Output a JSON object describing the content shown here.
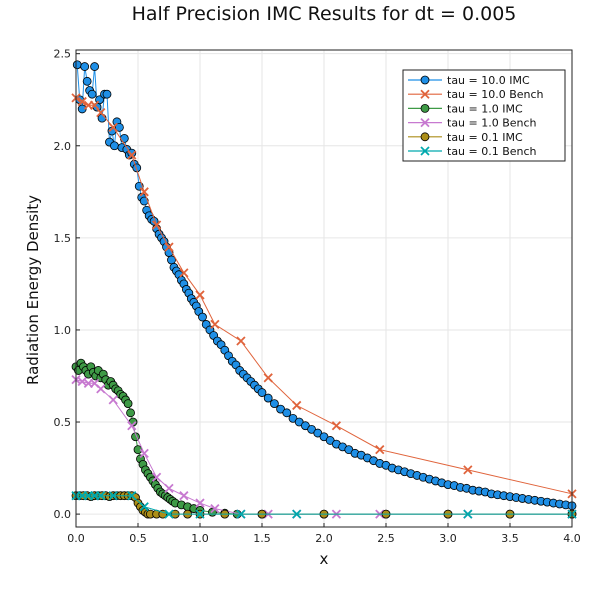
{
  "chart_data": {
    "type": "line",
    "title": "Half Precision IMC Results for dt = 0.005",
    "xlabel": "x",
    "ylabel": "Radiation Energy Density",
    "xlim": [
      0,
      4
    ],
    "ylim": [
      -0.07,
      2.52
    ],
    "xticks": [
      "0.0",
      "0.5",
      "1.0",
      "1.5",
      "2.0",
      "2.5",
      "3.0",
      "3.5",
      "4.0"
    ],
    "yticks": [
      "0.0",
      "0.5",
      "1.0",
      "1.5",
      "2.0",
      "2.5"
    ],
    "grid": true,
    "legend_position": "top-right",
    "colors": {
      "tau10_imc": "#1f8fe6",
      "tau10_bench": "#e0643c",
      "tau1_imc": "#3e9a46",
      "tau1_bench": "#c779d0",
      "tau01_imc": "#ac8e18",
      "tau01_bench": "#00a9ad"
    },
    "series": [
      {
        "name": "tau = 10.0 IMC",
        "marker": "circle",
        "x": [
          0.01,
          0.03,
          0.05,
          0.07,
          0.09,
          0.11,
          0.13,
          0.15,
          0.17,
          0.19,
          0.21,
          0.23,
          0.25,
          0.27,
          0.29,
          0.31,
          0.33,
          0.35,
          0.37,
          0.39,
          0.41,
          0.43,
          0.45,
          0.47,
          0.49,
          0.51,
          0.53,
          0.55,
          0.57,
          0.59,
          0.61,
          0.63,
          0.65,
          0.67,
          0.69,
          0.71,
          0.73,
          0.75,
          0.77,
          0.79,
          0.81,
          0.83,
          0.85,
          0.87,
          0.89,
          0.91,
          0.93,
          0.95,
          0.97,
          0.99,
          1.02,
          1.05,
          1.08,
          1.11,
          1.14,
          1.17,
          1.2,
          1.23,
          1.26,
          1.29,
          1.32,
          1.35,
          1.38,
          1.41,
          1.44,
          1.47,
          1.5,
          1.55,
          1.6,
          1.65,
          1.7,
          1.75,
          1.8,
          1.85,
          1.9,
          1.95,
          2.0,
          2.05,
          2.1,
          2.15,
          2.2,
          2.25,
          2.3,
          2.35,
          2.4,
          2.45,
          2.5,
          2.55,
          2.6,
          2.65,
          2.7,
          2.75,
          2.8,
          2.85,
          2.9,
          2.95,
          3.0,
          3.05,
          3.1,
          3.15,
          3.2,
          3.25,
          3.3,
          3.35,
          3.4,
          3.45,
          3.5,
          3.55,
          3.6,
          3.65,
          3.7,
          3.75,
          3.8,
          3.85,
          3.9,
          3.95,
          4.0
        ],
        "y": [
          2.44,
          2.25,
          2.2,
          2.43,
          2.35,
          2.3,
          2.28,
          2.43,
          2.21,
          2.25,
          2.15,
          2.28,
          2.28,
          2.02,
          2.08,
          2.0,
          2.13,
          2.1,
          1.99,
          2.04,
          1.98,
          1.95,
          1.96,
          1.9,
          1.88,
          1.78,
          1.72,
          1.7,
          1.65,
          1.62,
          1.6,
          1.59,
          1.55,
          1.52,
          1.5,
          1.48,
          1.45,
          1.42,
          1.38,
          1.34,
          1.32,
          1.3,
          1.27,
          1.25,
          1.22,
          1.2,
          1.17,
          1.15,
          1.13,
          1.1,
          1.07,
          1.03,
          1.0,
          0.97,
          0.94,
          0.92,
          0.89,
          0.86,
          0.83,
          0.81,
          0.78,
          0.76,
          0.74,
          0.72,
          0.7,
          0.68,
          0.66,
          0.63,
          0.6,
          0.57,
          0.55,
          0.52,
          0.5,
          0.48,
          0.46,
          0.44,
          0.42,
          0.4,
          0.38,
          0.365,
          0.35,
          0.33,
          0.32,
          0.305,
          0.29,
          0.275,
          0.265,
          0.25,
          0.24,
          0.23,
          0.22,
          0.21,
          0.2,
          0.19,
          0.18,
          0.17,
          0.16,
          0.155,
          0.145,
          0.14,
          0.13,
          0.125,
          0.12,
          0.11,
          0.105,
          0.1,
          0.095,
          0.09,
          0.085,
          0.08,
          0.075,
          0.07,
          0.065,
          0.06,
          0.055,
          0.05,
          0.045
        ]
      },
      {
        "name": "tau = 10.0 Bench",
        "marker": "x",
        "x": [
          0.0,
          0.05,
          0.1,
          0.15,
          0.2,
          0.3,
          0.45,
          0.55,
          0.65,
          0.75,
          0.87,
          1.0,
          1.12,
          1.33,
          1.55,
          1.78,
          2.1,
          2.45,
          3.16,
          4.0
        ],
        "y": [
          2.26,
          2.24,
          2.22,
          2.22,
          2.18,
          2.1,
          1.95,
          1.75,
          1.57,
          1.45,
          1.31,
          1.19,
          1.03,
          0.94,
          0.74,
          0.59,
          0.48,
          0.35,
          0.24,
          0.11
        ]
      },
      {
        "name": "tau = 1.0 IMC",
        "marker": "circle",
        "x": [
          0.0,
          0.02,
          0.04,
          0.06,
          0.08,
          0.1,
          0.12,
          0.14,
          0.16,
          0.18,
          0.2,
          0.22,
          0.24,
          0.26,
          0.28,
          0.3,
          0.32,
          0.34,
          0.36,
          0.38,
          0.4,
          0.42,
          0.44,
          0.46,
          0.48,
          0.5,
          0.52,
          0.54,
          0.56,
          0.58,
          0.6,
          0.62,
          0.64,
          0.66,
          0.68,
          0.7,
          0.72,
          0.74,
          0.76,
          0.78,
          0.8,
          0.85,
          0.9,
          0.95,
          1.0,
          1.1,
          1.2,
          1.3,
          1.5,
          2.0,
          2.5,
          3.0,
          3.5,
          4.0
        ],
        "y": [
          0.8,
          0.78,
          0.82,
          0.8,
          0.78,
          0.76,
          0.8,
          0.77,
          0.75,
          0.78,
          0.74,
          0.76,
          0.73,
          0.7,
          0.72,
          0.7,
          0.68,
          0.67,
          0.65,
          0.64,
          0.62,
          0.6,
          0.55,
          0.5,
          0.42,
          0.35,
          0.3,
          0.27,
          0.24,
          0.22,
          0.2,
          0.18,
          0.16,
          0.14,
          0.12,
          0.11,
          0.1,
          0.09,
          0.08,
          0.07,
          0.06,
          0.05,
          0.04,
          0.03,
          0.02,
          0.01,
          0.005,
          0.0,
          0.0,
          0.0,
          0.0,
          0.0,
          0.0,
          0.0
        ]
      },
      {
        "name": "tau = 1.0 Bench",
        "marker": "x",
        "x": [
          0.0,
          0.05,
          0.1,
          0.15,
          0.2,
          0.3,
          0.45,
          0.55,
          0.65,
          0.75,
          0.87,
          1.0,
          1.12,
          1.33,
          1.55,
          1.78,
          2.1,
          2.45,
          3.16,
          4.0
        ],
        "y": [
          0.73,
          0.72,
          0.71,
          0.71,
          0.68,
          0.62,
          0.48,
          0.33,
          0.2,
          0.14,
          0.1,
          0.06,
          0.03,
          0.0,
          0.0,
          0.0,
          0.0,
          0.0,
          0.0,
          0.0
        ]
      },
      {
        "name": "tau = 0.1 IMC",
        "marker": "circle",
        "x": [
          0.0,
          0.03,
          0.06,
          0.09,
          0.12,
          0.15,
          0.18,
          0.21,
          0.24,
          0.27,
          0.3,
          0.33,
          0.36,
          0.39,
          0.42,
          0.45,
          0.48,
          0.5,
          0.52,
          0.54,
          0.56,
          0.58,
          0.6,
          0.65,
          0.7,
          0.8,
          0.9,
          1.0,
          1.2,
          1.5,
          2.0,
          2.5,
          3.0,
          3.5,
          4.0
        ],
        "y": [
          0.1,
          0.1,
          0.1,
          0.1,
          0.095,
          0.1,
          0.1,
          0.1,
          0.1,
          0.095,
          0.1,
          0.1,
          0.1,
          0.1,
          0.1,
          0.1,
          0.09,
          0.06,
          0.04,
          0.02,
          0.01,
          0.0,
          0.0,
          0.0,
          0.0,
          0.0,
          0.0,
          0.0,
          0.0,
          0.0,
          0.0,
          0.0,
          0.0,
          0.0,
          0.0
        ]
      },
      {
        "name": "tau = 0.1 Bench",
        "marker": "x",
        "x": [
          0.0,
          0.05,
          0.1,
          0.15,
          0.2,
          0.3,
          0.45,
          0.55,
          0.75,
          1.0,
          1.33,
          1.78,
          3.16,
          4.0
        ],
        "y": [
          0.1,
          0.1,
          0.1,
          0.1,
          0.1,
          0.1,
          0.1,
          0.04,
          0.0,
          0.0,
          0.0,
          0.0,
          0.0,
          0.0
        ]
      }
    ]
  }
}
